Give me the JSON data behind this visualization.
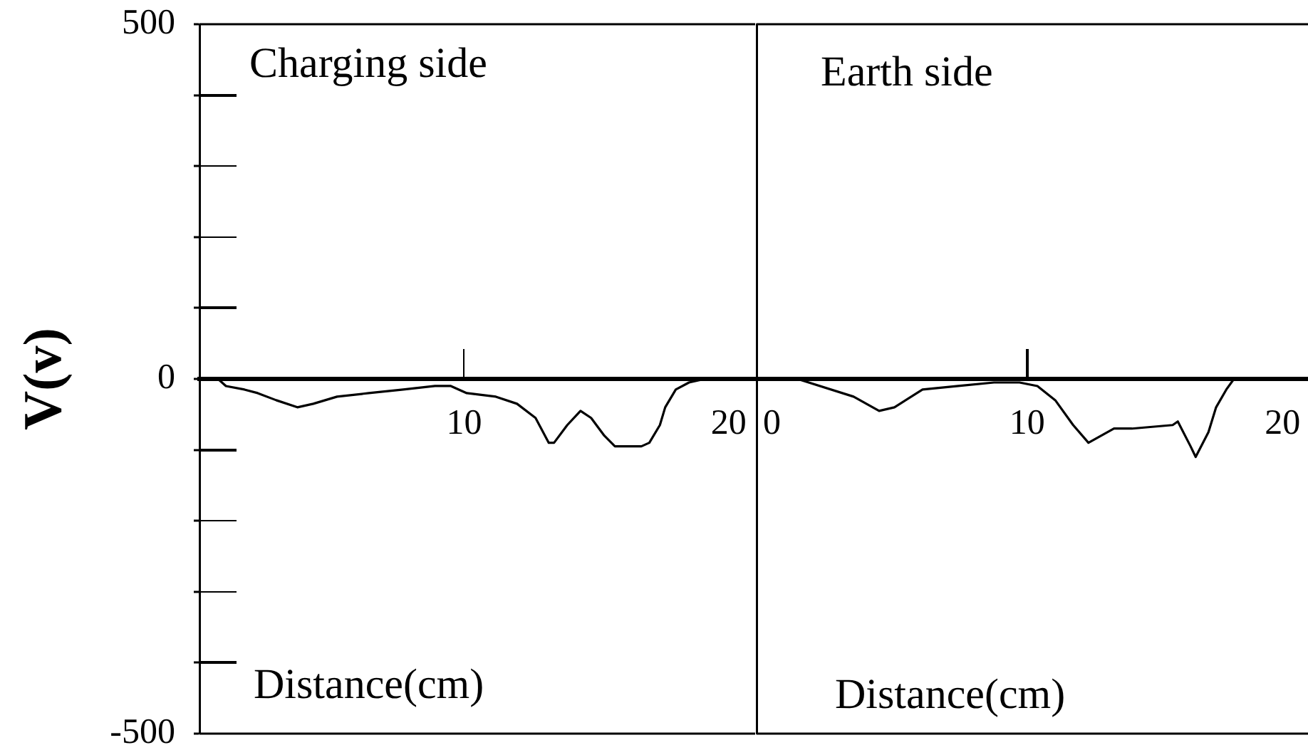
{
  "chart_data": [
    {
      "type": "line",
      "title": "Charging side",
      "xlabel": "Distance(cm)",
      "ylabel": "V(v)",
      "x": [
        0,
        0.7,
        1.0,
        1.7,
        2.2,
        2.9,
        3.7,
        4.3,
        5.2,
        6.4,
        7.7,
        8.9,
        9.5,
        10.1,
        11.2,
        12.0,
        12.7,
        13.2,
        13.4,
        13.9,
        14.4,
        14.8,
        15.3,
        15.7,
        16.7,
        17.0,
        17.4,
        17.6,
        18.0,
        18.5,
        19.1
      ],
      "series": [
        {
          "color": "#000000",
          "values": [
            0,
            0,
            -10,
            -15,
            -20,
            -30,
            -40,
            -35,
            -25,
            -20,
            -15,
            -10,
            -10,
            -20,
            -25,
            -35,
            -55,
            -90,
            -90,
            -65,
            -45,
            -55,
            -80,
            -95,
            -95,
            -90,
            -65,
            -40,
            -15,
            -5,
            0
          ]
        }
      ],
      "xlim": [
        0,
        21
      ],
      "ylim": [
        -500,
        500
      ],
      "xticks": [
        10,
        20
      ],
      "yticks": [
        -500,
        {
          "value": -400,
          "label": null
        },
        {
          "value": -300,
          "label": null
        },
        {
          "value": -200,
          "label": null
        },
        {
          "value": -100,
          "label": null
        },
        0,
        {
          "value": 100,
          "label": null
        },
        {
          "value": 200,
          "label": null
        },
        {
          "value": 300,
          "label": null
        },
        {
          "value": 400,
          "label": null
        },
        500
      ]
    },
    {
      "type": "line",
      "title": "Earth side",
      "xlabel": "Distance(cm)",
      "x": [
        0.6,
        1.0,
        3.2,
        4.2,
        4.8,
        5.9,
        7.3,
        8.7,
        9.7,
        10.4,
        11.1,
        11.8,
        12.4,
        13.4,
        14.1,
        15.7,
        15.9,
        16.4,
        16.6,
        17.1,
        17.4,
        17.8,
        18.1
      ],
      "series": [
        {
          "color": "#000000",
          "values": [
            0,
            0,
            -25,
            -45,
            -40,
            -15,
            -10,
            -5,
            -5,
            -10,
            -30,
            -65,
            -90,
            -70,
            -70,
            -65,
            -60,
            -95,
            -110,
            -75,
            -40,
            -15,
            0
          ]
        }
      ],
      "xlim": [
        -0.6,
        21
      ],
      "ylim": [
        -500,
        500
      ],
      "xticks": [
        0,
        10,
        20
      ],
      "tick_labels": "x"
    }
  ]
}
